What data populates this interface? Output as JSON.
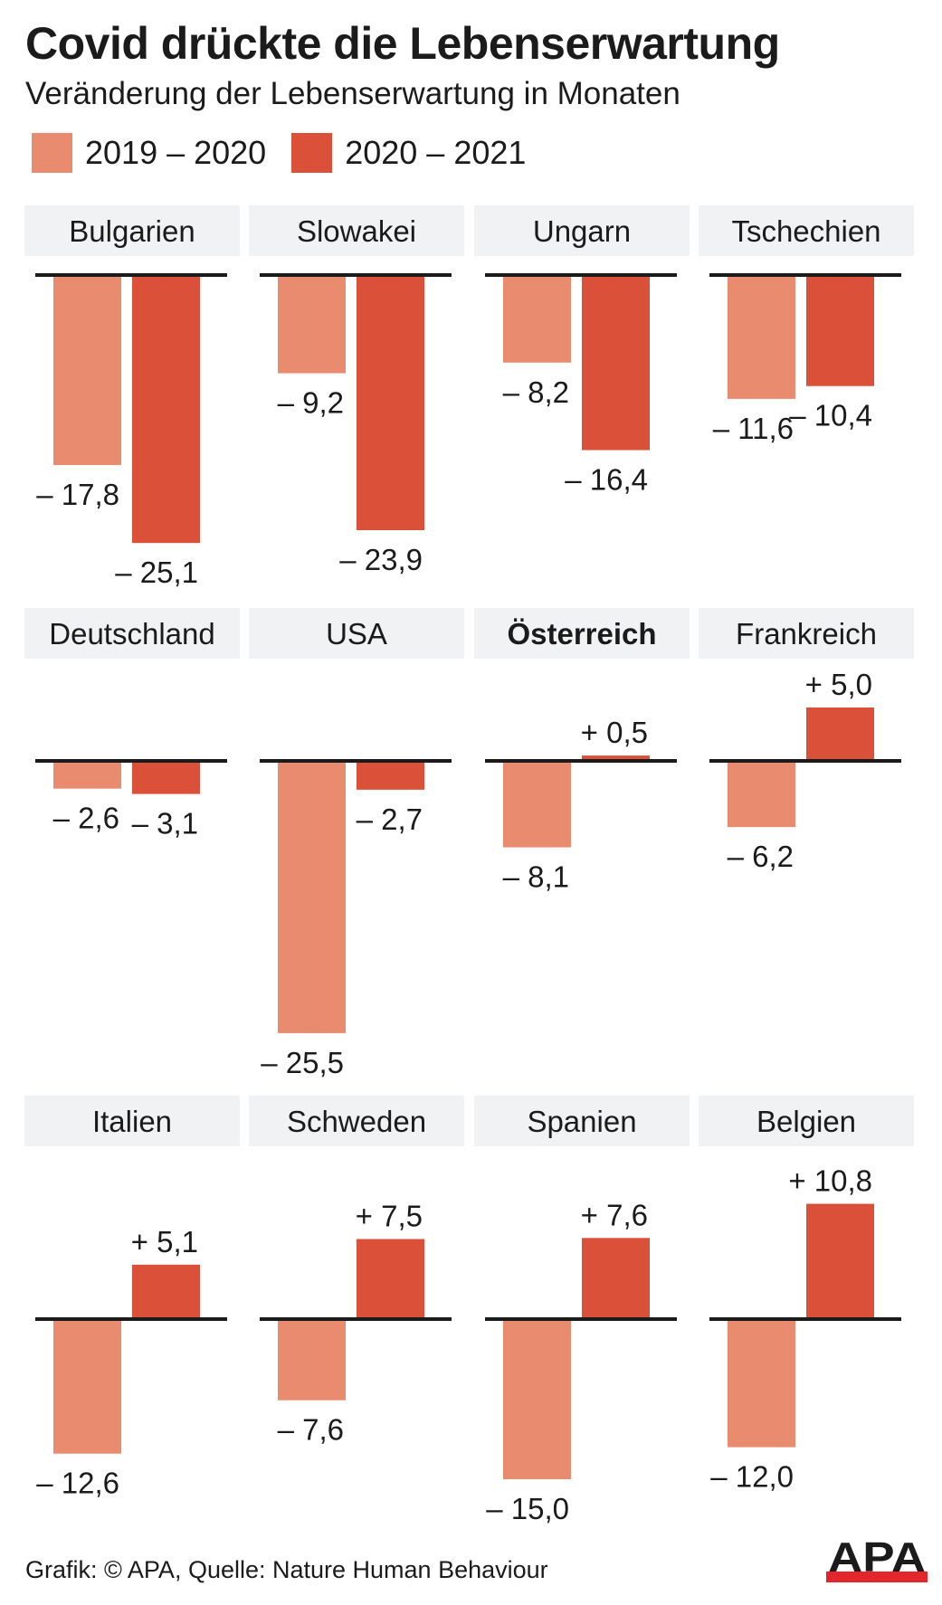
{
  "header": {
    "title": "Covid drückte die Lebenserwartung",
    "subtitle": "Veränderung der Lebenserwartung in Monaten"
  },
  "legend": [
    {
      "label": "2019 – 2020",
      "color": "#E88B6E"
    },
    {
      "label": "2020 – 2021",
      "color": "#DB5038"
    }
  ],
  "colors": {
    "series1": "#E88B6E",
    "series2": "#DB5038",
    "panel_header_bg": "#F1F2F3",
    "axis": "#1b1b1b",
    "text": "#1b1b1b",
    "logo_red": "#E3262C",
    "logo_black": "#1b1b1b"
  },
  "footer": {
    "credit": "Grafik: © APA, Quelle: Nature Human Behaviour",
    "logo_text": "APA"
  },
  "chart_data": {
    "type": "bar",
    "title": "Covid drückte die Lebenserwartung",
    "subtitle": "Veränderung der Lebenserwartung in Monaten",
    "xlabel": "",
    "ylabel": "Veränderung der Lebenserwartung in Monaten",
    "grid": false,
    "legend_position": "top-left",
    "layout": "small-multiples 4x3",
    "series_names": [
      "2019 – 2020",
      "2020 – 2021"
    ],
    "categories": [
      "Bulgarien",
      "Slowakei",
      "Ungarn",
      "Tschechien",
      "Deutschland",
      "USA",
      "Österreich",
      "Frankreich",
      "Italien",
      "Schweden",
      "Spanien",
      "Belgien"
    ],
    "highlighted_category": "Österreich",
    "series": [
      {
        "name": "2019 – 2020",
        "values": [
          -17.8,
          -9.2,
          -8.2,
          -11.6,
          -2.6,
          -25.5,
          -8.1,
          -6.2,
          -12.6,
          -7.6,
          -15.0,
          -12.0
        ],
        "labels": [
          "– 17,8",
          "– 9,2",
          "– 8,2",
          "– 11,6",
          "– 2,6",
          "– 25,5",
          "– 8,1",
          "– 6,2",
          "– 12,6",
          "– 7,6",
          "– 15,0",
          "– 12,0"
        ]
      },
      {
        "name": "2020 – 2021",
        "values": [
          -25.1,
          -23.9,
          -16.4,
          -10.4,
          -3.1,
          -2.7,
          0.5,
          5.0,
          5.1,
          7.5,
          7.6,
          10.8
        ],
        "labels": [
          "– 25,1",
          "– 23,9",
          "– 16,4",
          "– 10,4",
          "– 3,1",
          "– 2,7",
          "+ 0,5",
          "+ 5,0",
          "+ 5,1",
          "+ 7,5",
          "+ 7,6",
          "+ 10,8"
        ]
      }
    ]
  }
}
